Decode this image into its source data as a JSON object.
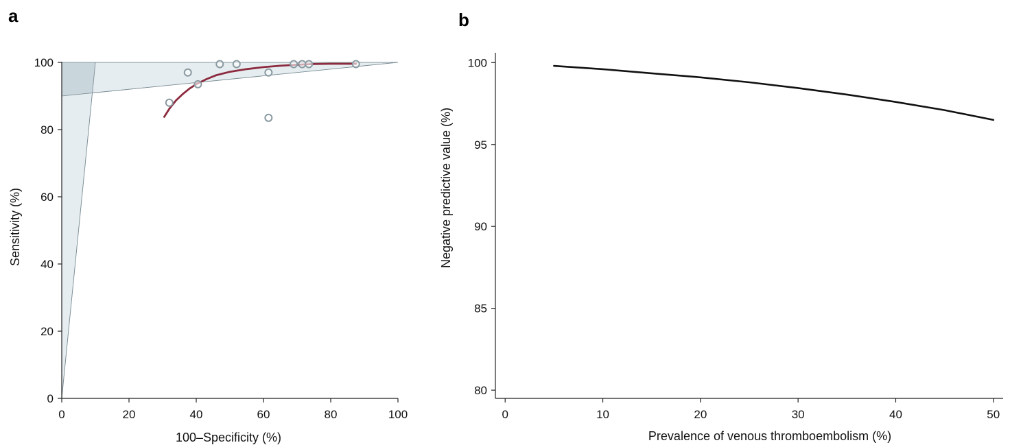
{
  "panels": {
    "a": "a",
    "b": "b"
  },
  "colors": {
    "region_fill": "#e6edf0",
    "region_dark_fill": "#c9d6dc",
    "region_stroke": "#7d8f97",
    "fit_curve": "#8c2a3e",
    "points": "#8a9aa1",
    "line_b": "#111111"
  },
  "chart_data": [
    {
      "type": "scatter",
      "panel": "a",
      "xlabel": "100–Specificity (%)",
      "ylabel": "Sensitivity (%)",
      "xlim": [
        0,
        100
      ],
      "ylim": [
        0,
        100
      ],
      "xticks": [
        0,
        20,
        40,
        60,
        80,
        100
      ],
      "yticks": [
        0,
        20,
        40,
        60,
        80,
        100
      ],
      "points": [
        {
          "x": 32,
          "y": 88
        },
        {
          "x": 37.5,
          "y": 97
        },
        {
          "x": 40.5,
          "y": 93.5
        },
        {
          "x": 47,
          "y": 99.5
        },
        {
          "x": 52,
          "y": 99.5
        },
        {
          "x": 61.5,
          "y": 97
        },
        {
          "x": 61.5,
          "y": 83.5
        },
        {
          "x": 69,
          "y": 99.5
        },
        {
          "x": 71.5,
          "y": 99.5
        },
        {
          "x": 73.5,
          "y": 99.5
        },
        {
          "x": 87.5,
          "y": 99.5
        }
      ],
      "fit_curve": [
        {
          "x": 30.5,
          "y": 83.8
        },
        {
          "x": 32,
          "y": 86.2
        },
        {
          "x": 34,
          "y": 88.7
        },
        {
          "x": 36,
          "y": 90.6
        },
        {
          "x": 38,
          "y": 92.2
        },
        {
          "x": 40,
          "y": 93.5
        },
        {
          "x": 43,
          "y": 95
        },
        {
          "x": 46,
          "y": 96.2
        },
        {
          "x": 50,
          "y": 97.2
        },
        {
          "x": 55,
          "y": 98
        },
        {
          "x": 60,
          "y": 98.6
        },
        {
          "x": 65,
          "y": 99
        },
        {
          "x": 70,
          "y": 99.3
        },
        {
          "x": 75,
          "y": 99.5
        },
        {
          "x": 80,
          "y": 99.6
        },
        {
          "x": 87.5,
          "y": 99.6
        }
      ],
      "regions": {
        "sensitivity_band": [
          [
            0,
            90
          ],
          [
            100,
            100
          ],
          [
            0,
            100
          ]
        ],
        "specificity_band": [
          [
            0,
            0
          ],
          [
            10,
            100
          ],
          [
            0,
            100
          ]
        ],
        "overlap": [
          [
            0,
            90
          ],
          [
            9.1,
            90.9
          ],
          [
            10,
            100
          ],
          [
            0,
            100
          ]
        ]
      }
    },
    {
      "type": "line",
      "panel": "b",
      "xlabel": "Prevalence of venous thromboembolism (%)",
      "ylabel": "Negative predictive value (%)",
      "xlim": [
        -1,
        51
      ],
      "ylim": [
        79.5,
        100.6
      ],
      "xticks": [
        0,
        10,
        20,
        30,
        40,
        50
      ],
      "yticks": [
        80,
        85,
        90,
        95,
        100
      ],
      "series": [
        {
          "x": [
            5,
            10,
            15,
            20,
            25,
            30,
            35,
            40,
            45,
            50
          ],
          "y": [
            99.8,
            99.6,
            99.35,
            99.1,
            98.8,
            98.45,
            98.05,
            97.6,
            97.1,
            96.5
          ]
        }
      ]
    }
  ]
}
